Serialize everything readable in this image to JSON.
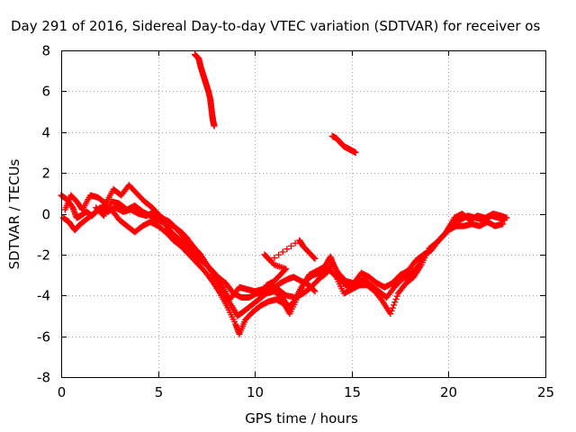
{
  "chart_data": {
    "type": "scatter",
    "title": "Day 291 of 2016, Sidereal Day-to-day VTEC variation (SDTVAR) for receiver os",
    "xlabel": "GPS time / hours",
    "ylabel": "SDTVAR / TECUs",
    "xlim": [
      0,
      25
    ],
    "ylim": [
      -8,
      8
    ],
    "x_ticks": [
      0,
      5,
      10,
      15,
      20,
      25
    ],
    "y_ticks": [
      -8,
      -6,
      -4,
      -2,
      0,
      2,
      4,
      6,
      8
    ],
    "x_tick_labels": [
      "0",
      "5",
      "10",
      "15",
      "20",
      "25"
    ],
    "y_tick_labels": [
      "-8",
      "-6",
      "-4",
      "-2",
      "0",
      "2",
      "4",
      "6",
      "8"
    ],
    "grid": true,
    "marker": "+",
    "color": "#ff0000",
    "series": [
      {
        "values": [
          [
            0.0,
            0.9
          ],
          [
            0.3,
            0.7
          ],
          [
            0.6,
            0.3
          ],
          [
            0.8,
            -0.2
          ],
          [
            1.0,
            -0.1
          ],
          [
            1.3,
            0.1
          ],
          [
            1.6,
            -0.1
          ],
          [
            2.0,
            0.3
          ],
          [
            2.4,
            0.1
          ],
          [
            2.8,
            0.3
          ],
          [
            3.2,
            0.1
          ],
          [
            3.6,
            0.2
          ],
          [
            4.0,
            0.0
          ],
          [
            4.4,
            -0.1
          ],
          [
            4.8,
            0.1
          ],
          [
            5.2,
            -0.2
          ],
          [
            5.6,
            -0.4
          ],
          [
            6.0,
            -0.8
          ],
          [
            6.4,
            -1.2
          ],
          [
            6.8,
            -1.6
          ],
          [
            7.2,
            -2.0
          ],
          [
            7.6,
            -2.6
          ],
          [
            8.0,
            -3.2
          ],
          [
            8.4,
            -3.9
          ],
          [
            8.8,
            -4.5
          ],
          [
            9.1,
            -5.0
          ],
          [
            9.4,
            -4.8
          ],
          [
            9.8,
            -4.5
          ],
          [
            10.2,
            -4.2
          ],
          [
            10.6,
            -3.9
          ],
          [
            11.0,
            -3.8
          ],
          [
            11.4,
            -4.1
          ],
          [
            11.8,
            -4.6
          ],
          [
            12.0,
            -4.3
          ],
          [
            12.4,
            -3.6
          ],
          [
            12.8,
            -3.0
          ],
          [
            13.2,
            -2.8
          ],
          [
            13.6,
            -2.6
          ],
          [
            13.9,
            -2.1
          ],
          [
            14.1,
            -2.6
          ],
          [
            14.4,
            -3.2
          ],
          [
            14.8,
            -3.6
          ],
          [
            15.2,
            -3.4
          ],
          [
            15.6,
            -3.2
          ],
          [
            16.0,
            -3.5
          ],
          [
            16.4,
            -3.8
          ],
          [
            16.8,
            -4.1
          ],
          [
            17.2,
            -3.6
          ],
          [
            17.6,
            -3.2
          ],
          [
            18.0,
            -3.0
          ],
          [
            18.4,
            -2.6
          ],
          [
            18.8,
            -2.0
          ],
          [
            19.2,
            -1.6
          ],
          [
            19.6,
            -1.2
          ],
          [
            20.0,
            -0.8
          ],
          [
            20.4,
            -0.6
          ],
          [
            20.8,
            -0.6
          ],
          [
            21.2,
            -0.5
          ],
          [
            21.6,
            -0.6
          ],
          [
            22.0,
            -0.4
          ],
          [
            22.4,
            -0.6
          ],
          [
            22.8,
            -0.5
          ]
        ]
      },
      {
        "values": [
          [
            0.1,
            -0.2
          ],
          [
            0.4,
            -0.4
          ],
          [
            0.7,
            -0.8
          ],
          [
            1.0,
            -0.5
          ],
          [
            1.4,
            -0.2
          ],
          [
            1.8,
            0.1
          ],
          [
            2.2,
            0.4
          ],
          [
            2.6,
            0.2
          ],
          [
            3.0,
            -0.3
          ],
          [
            3.4,
            -0.6
          ],
          [
            3.8,
            -0.9
          ],
          [
            4.2,
            -0.6
          ],
          [
            4.6,
            -0.4
          ],
          [
            5.0,
            -0.6
          ],
          [
            5.4,
            -0.9
          ],
          [
            5.8,
            -1.3
          ],
          [
            6.2,
            -1.6
          ],
          [
            6.6,
            -2.0
          ],
          [
            7.0,
            -2.4
          ],
          [
            7.4,
            -2.8
          ],
          [
            7.8,
            -3.3
          ],
          [
            8.2,
            -3.9
          ],
          [
            8.6,
            -4.6
          ],
          [
            9.0,
            -5.4
          ],
          [
            9.2,
            -5.9
          ],
          [
            9.5,
            -5.2
          ],
          [
            9.9,
            -4.8
          ],
          [
            10.3,
            -4.5
          ],
          [
            10.7,
            -4.3
          ],
          [
            11.1,
            -4.2
          ],
          [
            11.5,
            -4.4
          ],
          [
            11.8,
            -4.9
          ],
          [
            12.2,
            -4.1
          ],
          [
            12.6,
            -3.3
          ],
          [
            13.0,
            -3.0
          ],
          [
            13.4,
            -2.9
          ],
          [
            13.8,
            -2.7
          ],
          [
            14.2,
            -3.1
          ],
          [
            14.6,
            -3.9
          ],
          [
            15.0,
            -3.7
          ],
          [
            15.4,
            -3.5
          ],
          [
            15.8,
            -3.5
          ],
          [
            16.2,
            -3.8
          ],
          [
            16.6,
            -4.3
          ],
          [
            17.0,
            -4.9
          ],
          [
            17.4,
            -3.9
          ],
          [
            17.8,
            -3.4
          ],
          [
            18.2,
            -3.1
          ],
          [
            18.6,
            -2.5
          ],
          [
            19.0,
            -1.7
          ],
          [
            19.4,
            -1.4
          ],
          [
            19.8,
            -1.0
          ],
          [
            20.2,
            -0.4
          ],
          [
            20.6,
            -0.3
          ],
          [
            21.0,
            -0.1
          ],
          [
            21.4,
            -0.2
          ],
          [
            21.8,
            -0.3
          ],
          [
            22.2,
            -0.1
          ],
          [
            22.6,
            -0.2
          ],
          [
            22.9,
            -0.3
          ]
        ]
      },
      {
        "values": [
          [
            0.2,
            0.2
          ],
          [
            0.5,
            0.9
          ],
          [
            0.8,
            0.6
          ],
          [
            1.1,
            0.2
          ],
          [
            1.5,
            0.9
          ],
          [
            1.9,
            0.8
          ],
          [
            2.3,
            0.5
          ],
          [
            2.7,
            1.2
          ],
          [
            3.1,
            0.9
          ],
          [
            3.5,
            1.4
          ],
          [
            3.9,
            1.0
          ],
          [
            4.3,
            0.6
          ],
          [
            4.7,
            0.3
          ],
          [
            5.1,
            -0.1
          ],
          [
            5.5,
            -0.7
          ],
          [
            5.9,
            -1.1
          ],
          [
            6.3,
            -1.4
          ],
          [
            6.7,
            -1.8
          ],
          [
            7.1,
            -2.2
          ],
          [
            7.5,
            -2.5
          ],
          [
            7.9,
            -2.9
          ],
          [
            8.3,
            -3.5
          ],
          [
            8.7,
            -4.2
          ],
          [
            9.2,
            -3.6
          ],
          [
            9.6,
            -3.7
          ],
          [
            10.0,
            -3.8
          ],
          [
            10.4,
            -3.7
          ],
          [
            10.8,
            -3.5
          ],
          [
            11.2,
            -3.7
          ],
          [
            11.6,
            -4.0
          ],
          [
            12.1,
            -4.1
          ],
          [
            12.5,
            -3.9
          ],
          [
            12.9,
            -3.6
          ],
          [
            13.3,
            -3.2
          ],
          [
            13.7,
            -2.9
          ],
          [
            14.0,
            -2.4
          ],
          [
            14.3,
            -2.9
          ],
          [
            14.7,
            -3.3
          ],
          [
            15.1,
            -3.4
          ],
          [
            15.5,
            -2.9
          ],
          [
            15.9,
            -3.1
          ],
          [
            16.3,
            -3.4
          ],
          [
            16.7,
            -3.6
          ],
          [
            17.1,
            -3.4
          ],
          [
            17.5,
            -3.0
          ],
          [
            17.9,
            -2.8
          ],
          [
            18.3,
            -2.3
          ],
          [
            18.7,
            -2.0
          ],
          [
            19.1,
            -1.8
          ],
          [
            19.5,
            -1.3
          ],
          [
            19.9,
            -0.9
          ],
          [
            20.3,
            -0.2
          ],
          [
            20.7,
            0.0
          ],
          [
            21.1,
            -0.3
          ],
          [
            21.5,
            -0.1
          ],
          [
            21.9,
            -0.2
          ],
          [
            22.3,
            0.0
          ],
          [
            22.7,
            -0.1
          ],
          [
            23.0,
            -0.2
          ]
        ]
      },
      {
        "values": [
          [
            1.8,
            0.3
          ],
          [
            2.2,
            -0.1
          ],
          [
            2.6,
            0.6
          ],
          [
            3.0,
            0.5
          ],
          [
            3.4,
            0.2
          ],
          [
            3.8,
            0.4
          ],
          [
            4.2,
            0.1
          ],
          [
            4.6,
            -0.1
          ],
          [
            5.0,
            -0.3
          ],
          [
            5.4,
            -0.5
          ],
          [
            5.8,
            -0.6
          ],
          [
            6.2,
            -0.9
          ],
          [
            6.5,
            -1.2
          ],
          [
            6.9,
            -1.7
          ],
          [
            7.3,
            -2.3
          ],
          [
            7.7,
            -2.7
          ],
          [
            8.1,
            -3.1
          ],
          [
            8.5,
            -3.4
          ],
          [
            8.9,
            -3.9
          ],
          [
            9.3,
            -4.1
          ],
          [
            9.7,
            -4.1
          ],
          [
            10.1,
            -3.9
          ],
          [
            10.5,
            -3.9
          ],
          [
            10.9,
            -3.7
          ],
          [
            11.3,
            -3.4
          ],
          [
            11.7,
            -3.2
          ],
          [
            12.0,
            -3.1
          ],
          [
            12.4,
            -3.3
          ],
          [
            12.8,
            -3.5
          ],
          [
            13.1,
            -3.8
          ]
        ]
      },
      {
        "values": [
          [
            6.9,
            7.8
          ],
          [
            7.1,
            7.6
          ],
          [
            7.2,
            7.2
          ],
          [
            7.3,
            6.9
          ],
          [
            7.4,
            6.6
          ],
          [
            7.5,
            6.3
          ],
          [
            7.6,
            6.0
          ],
          [
            7.7,
            5.6
          ],
          [
            7.75,
            5.2
          ],
          [
            7.8,
            4.8
          ],
          [
            7.85,
            4.5
          ],
          [
            7.9,
            4.3
          ]
        ]
      },
      {
        "values": [
          [
            14.0,
            3.8
          ],
          [
            14.2,
            3.7
          ],
          [
            14.4,
            3.5
          ],
          [
            14.6,
            3.3
          ],
          [
            14.8,
            3.2
          ],
          [
            15.0,
            3.1
          ],
          [
            15.2,
            3.0
          ]
        ]
      },
      {
        "values": [
          [
            10.6,
            -3.5
          ],
          [
            11.0,
            -3.3
          ],
          [
            11.3,
            -3.0
          ],
          [
            11.6,
            -2.7
          ],
          [
            11.0,
            -2.5
          ],
          [
            10.5,
            -2.0
          ],
          [
            10.8,
            -2.3
          ],
          [
            12.3,
            -1.3
          ],
          [
            12.5,
            -1.6
          ],
          [
            12.8,
            -1.9
          ],
          [
            13.1,
            -2.2
          ]
        ]
      }
    ]
  }
}
